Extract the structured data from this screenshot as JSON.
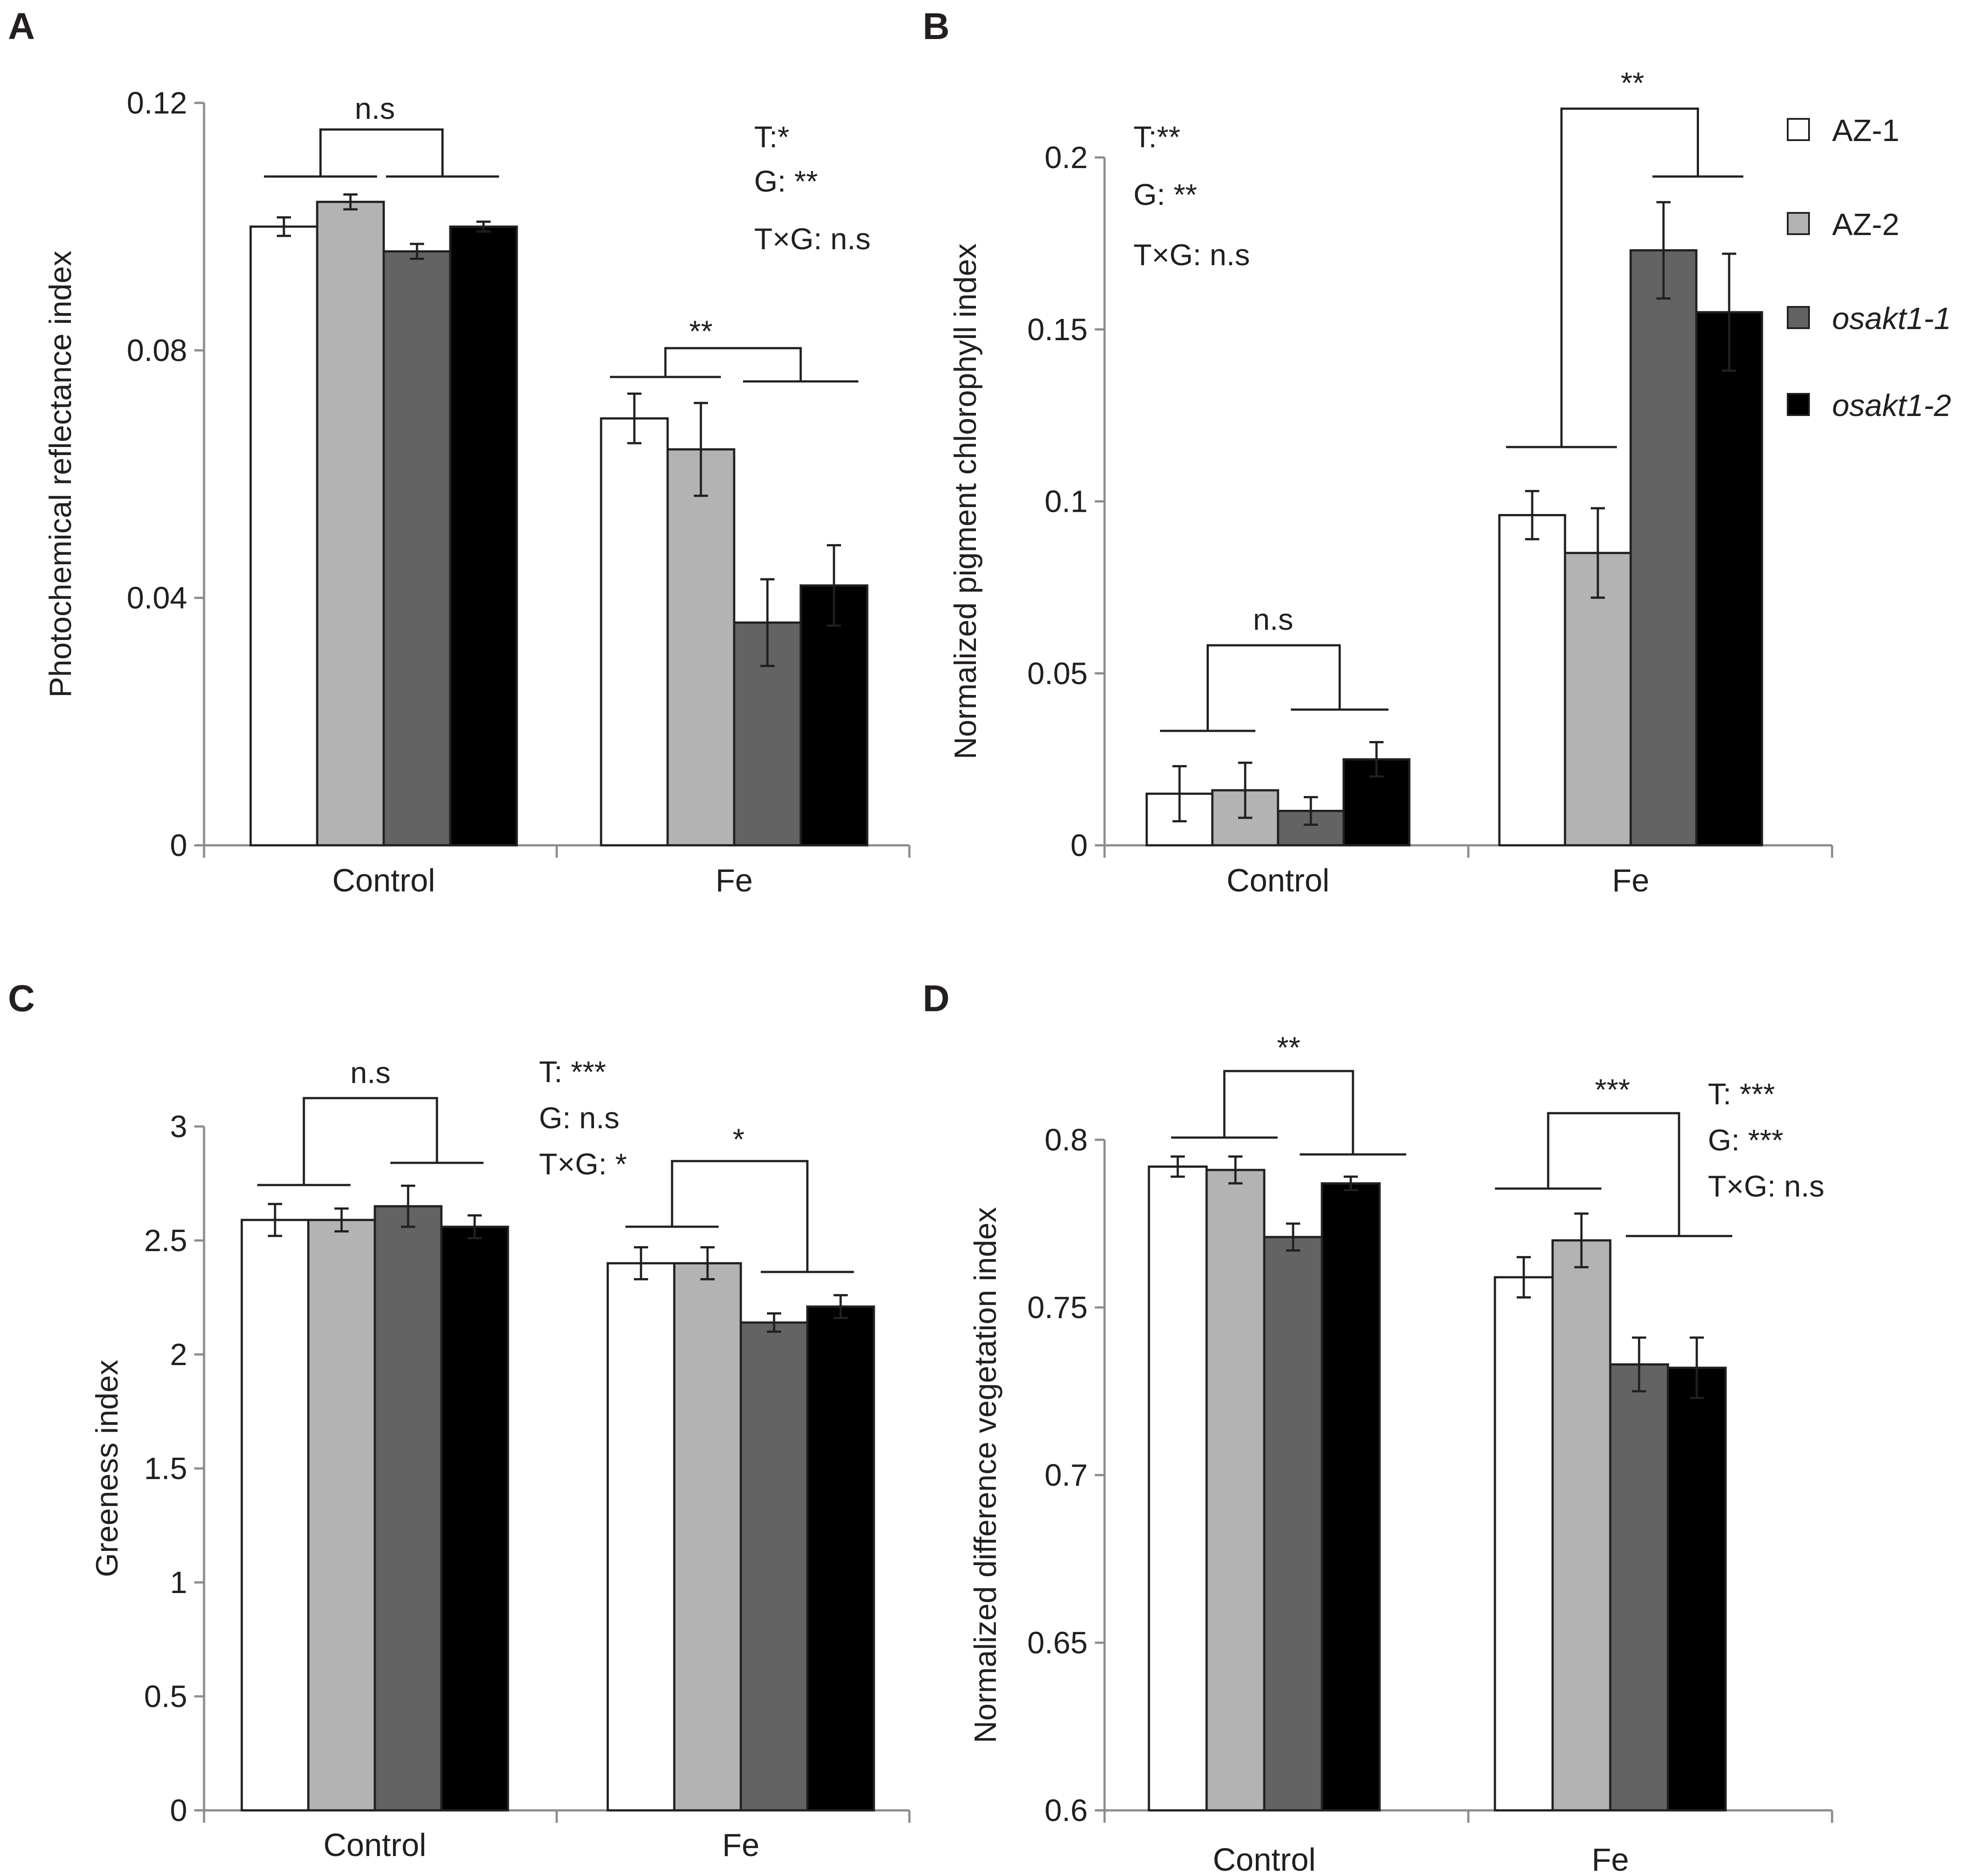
{
  "legend": {
    "entries": [
      {
        "label": "AZ-1",
        "italic": false
      },
      {
        "label": "AZ-2",
        "italic": false
      },
      {
        "label": "osakt1-1",
        "italic": true
      },
      {
        "label": "osakt1-2",
        "italic": true
      }
    ]
  },
  "colors": {
    "series": [
      "#ffffff",
      "#b3b3b3",
      "#636363",
      "#000000"
    ],
    "axis": "#8c8c8c",
    "bar_stroke": "#231f20"
  },
  "chart_data": [
    {
      "type": "bar",
      "panel": "A",
      "title": "",
      "xlabel": "",
      "ylabel": "Photochemical reflectance index",
      "ylim": [
        0,
        0.12
      ],
      "yticks": [
        "0",
        "0.04",
        "0.08",
        "0.12"
      ],
      "categories": [
        "Control",
        "Fe"
      ],
      "series": [
        {
          "name": "AZ-1",
          "values": [
            0.1,
            0.069
          ],
          "errors": [
            0.0015,
            0.004
          ]
        },
        {
          "name": "AZ-2",
          "values": [
            0.104,
            0.064
          ],
          "errors": [
            0.0012,
            0.0075
          ]
        },
        {
          "name": "osakt1-1",
          "values": [
            0.096,
            0.036
          ],
          "errors": [
            0.0012,
            0.007
          ]
        },
        {
          "name": "osakt1-2",
          "values": [
            0.1,
            0.042
          ],
          "errors": [
            0.0008,
            0.0065
          ]
        }
      ],
      "stats": [
        "T:*",
        "G: **",
        "T×G: n.s"
      ],
      "brackets": [
        {
          "category": "Control",
          "label": "n.s"
        },
        {
          "category": "Fe",
          "label": "**"
        }
      ]
    },
    {
      "type": "bar",
      "panel": "B",
      "title": "",
      "xlabel": "",
      "ylabel": "Normalized pigment chlorophyll index",
      "ylim": [
        0,
        0.2
      ],
      "yticks": [
        "0",
        "0.05",
        "0.1",
        "0.15",
        "0.2"
      ],
      "categories": [
        "Control",
        "Fe"
      ],
      "series": [
        {
          "name": "AZ-1",
          "values": [
            0.015,
            0.096
          ],
          "errors": [
            0.008,
            0.007
          ]
        },
        {
          "name": "AZ-2",
          "values": [
            0.016,
            0.085
          ],
          "errors": [
            0.008,
            0.013
          ]
        },
        {
          "name": "osakt1-1",
          "values": [
            0.01,
            0.173
          ],
          "errors": [
            0.004,
            0.014
          ]
        },
        {
          "name": "osakt1-2",
          "values": [
            0.025,
            0.155
          ],
          "errors": [
            0.005,
            0.017
          ]
        }
      ],
      "stats": [
        "T:**",
        "G: **",
        "T×G: n.s"
      ],
      "brackets": [
        {
          "category": "Control",
          "label": "n.s"
        },
        {
          "category": "Fe",
          "label": "**"
        }
      ]
    },
    {
      "type": "bar",
      "panel": "C",
      "title": "",
      "xlabel": "",
      "ylabel": "Greeness index",
      "ylim": [
        0,
        3
      ],
      "yticks": [
        "0",
        "0.5",
        "1",
        "1.5",
        "2",
        "2.5",
        "3"
      ],
      "categories": [
        "Control",
        "Fe"
      ],
      "series": [
        {
          "name": "AZ-1",
          "values": [
            2.59,
            2.4
          ],
          "errors": [
            0.07,
            0.07
          ]
        },
        {
          "name": "AZ-2",
          "values": [
            2.59,
            2.4
          ],
          "errors": [
            0.05,
            0.07
          ]
        },
        {
          "name": "osakt1-1",
          "values": [
            2.65,
            2.14
          ],
          "errors": [
            0.09,
            0.04
          ]
        },
        {
          "name": "osakt1-2",
          "values": [
            2.56,
            2.21
          ],
          "errors": [
            0.05,
            0.05
          ]
        }
      ],
      "stats": [
        "T: ***",
        "G: n.s",
        "T×G: *"
      ],
      "brackets": [
        {
          "category": "Control",
          "label": "n.s"
        },
        {
          "category": "Fe",
          "label": "*"
        }
      ]
    },
    {
      "type": "bar",
      "panel": "D",
      "title": "",
      "xlabel": "",
      "ylabel": "Normalized difference vegetation index",
      "ylim": [
        0.6,
        0.8
      ],
      "yticks": [
        "0.6",
        "0.65",
        "0.7",
        "0.75",
        "0.8"
      ],
      "categories": [
        "Control",
        "Fe"
      ],
      "series": [
        {
          "name": "AZ-1",
          "values": [
            0.792,
            0.759
          ],
          "errors": [
            0.003,
            0.006
          ]
        },
        {
          "name": "AZ-2",
          "values": [
            0.791,
            0.77
          ],
          "errors": [
            0.004,
            0.008
          ]
        },
        {
          "name": "osakt1-1",
          "values": [
            0.771,
            0.733
          ],
          "errors": [
            0.004,
            0.008
          ]
        },
        {
          "name": "osakt1-2",
          "values": [
            0.787,
            0.732
          ],
          "errors": [
            0.002,
            0.009
          ]
        }
      ],
      "stats": [
        "T: ***",
        "G: ***",
        "T×G: n.s"
      ],
      "brackets": [
        {
          "category": "Control",
          "label": "**"
        },
        {
          "category": "Fe",
          "label": "***"
        }
      ]
    }
  ]
}
